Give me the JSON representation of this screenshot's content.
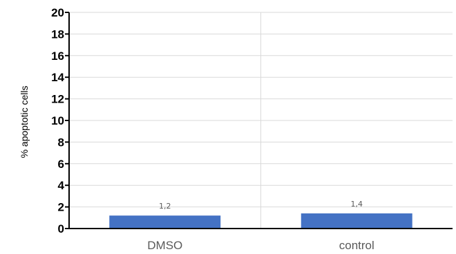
{
  "chart_data": {
    "type": "bar",
    "categories": [
      "DMSO",
      "control"
    ],
    "values": [
      1.2,
      1.4
    ],
    "data_labels": [
      "1,2",
      "1,4"
    ],
    "ylabel": "% apoptotic cells",
    "ylim": [
      0,
      20
    ],
    "yticks": [
      "0",
      "2",
      "4",
      "6",
      "8",
      "10",
      "12",
      "14",
      "16",
      "18",
      "20"
    ],
    "grid": true,
    "bar_color": "#4472C4"
  }
}
